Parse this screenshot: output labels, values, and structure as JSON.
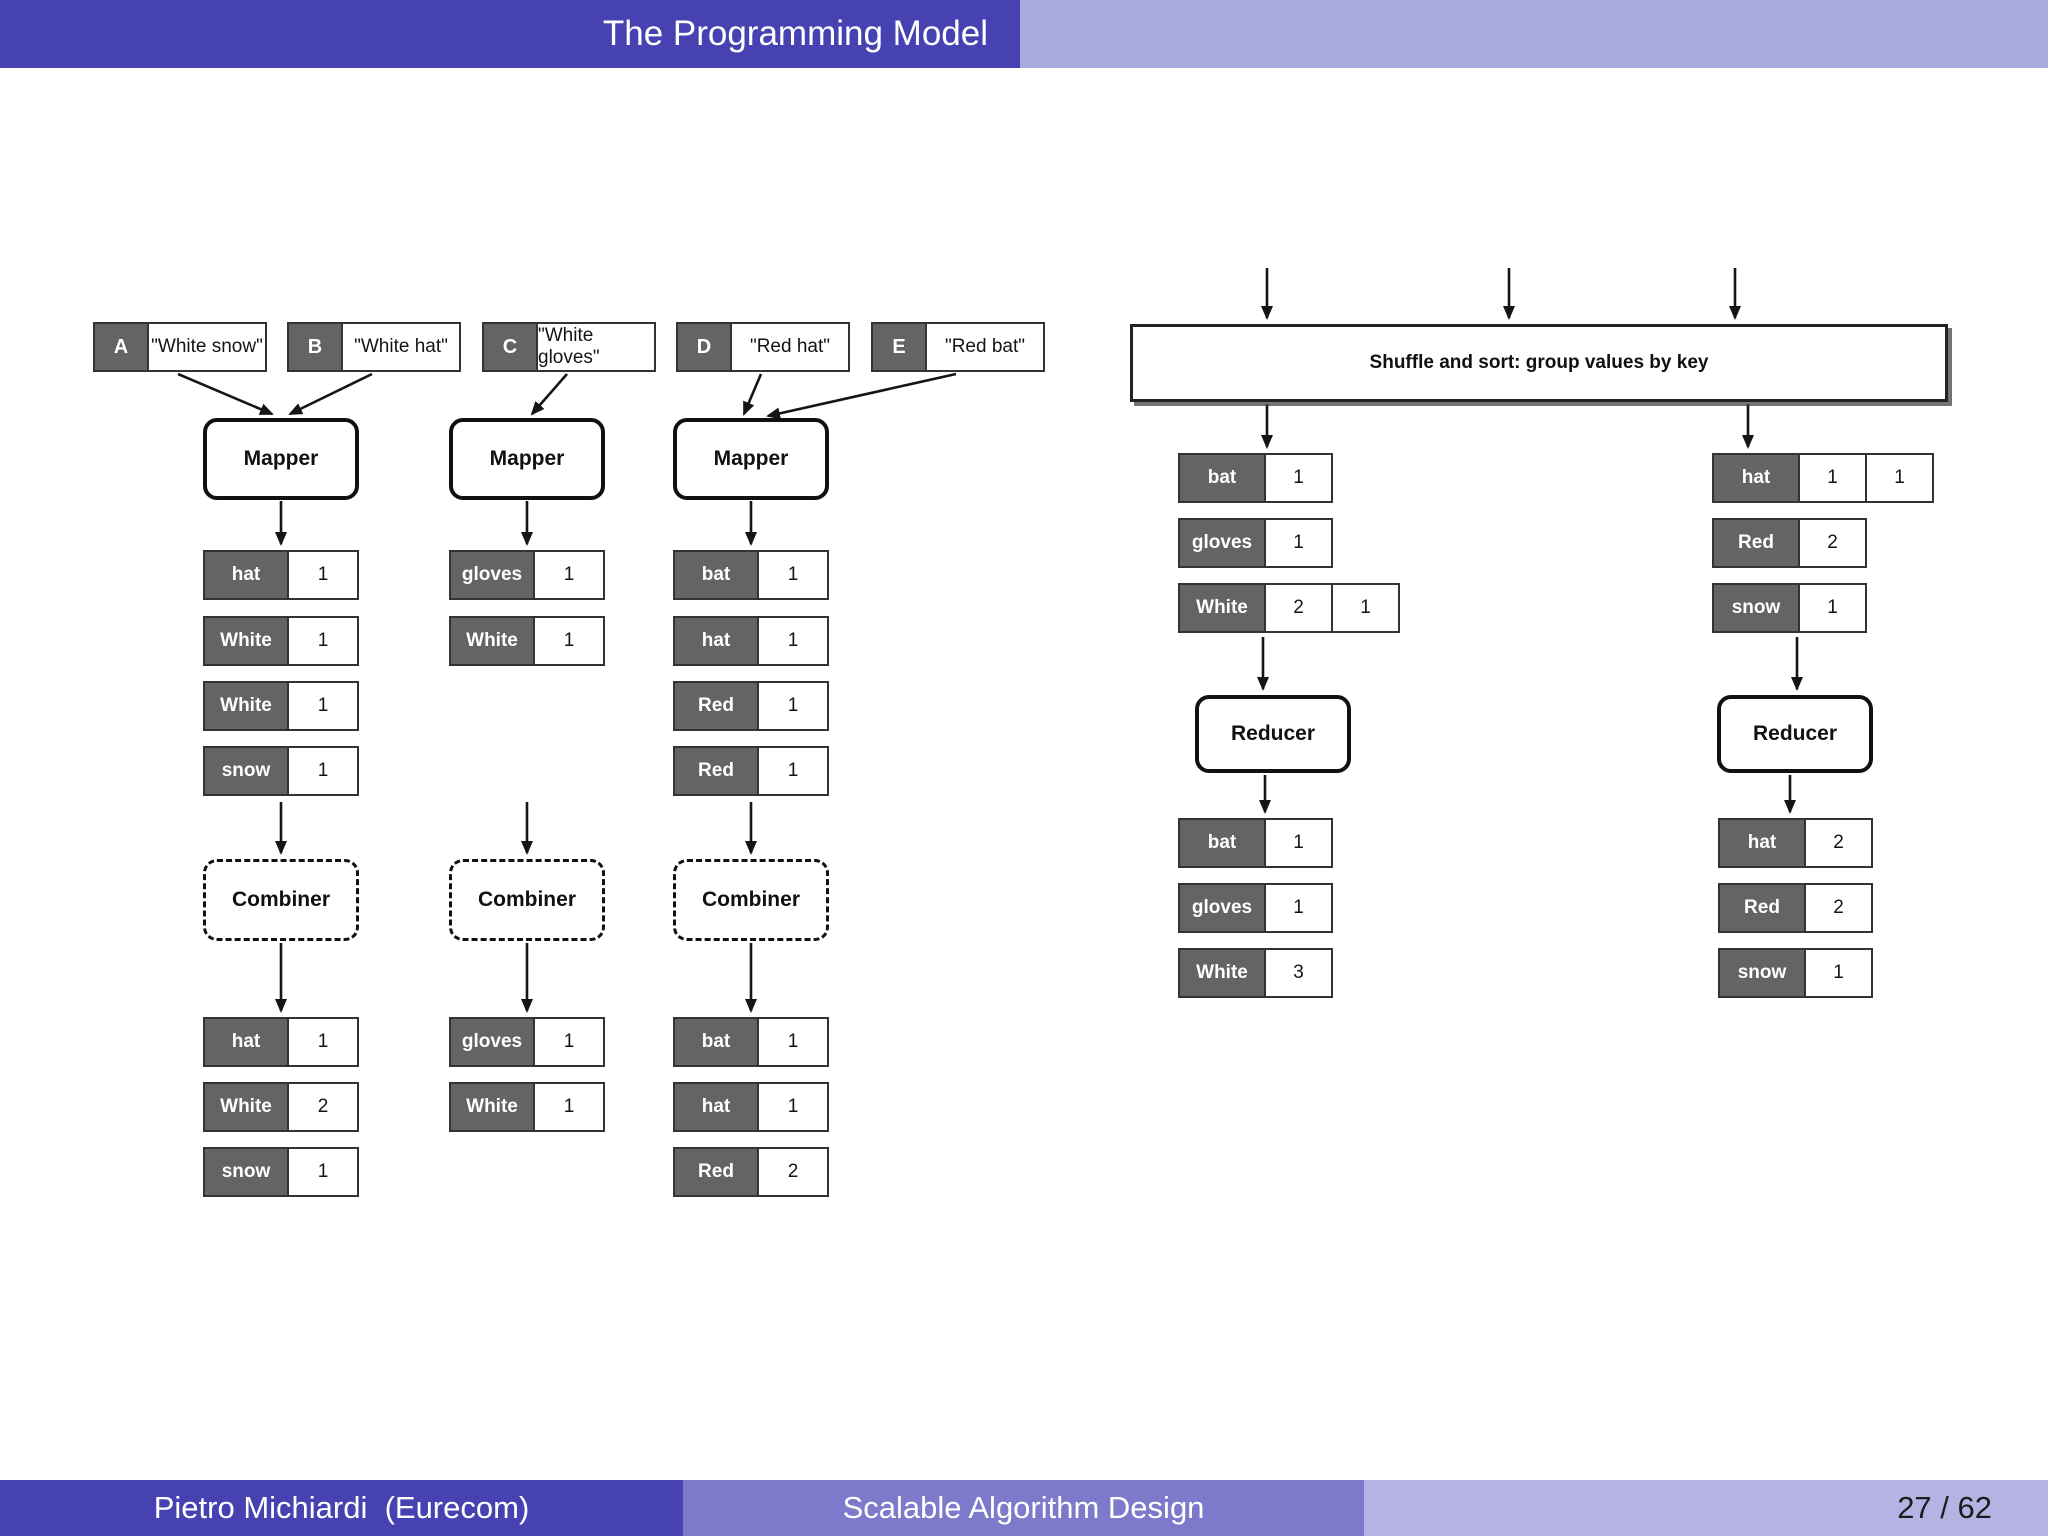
{
  "header": {
    "title": "The Programming Model"
  },
  "footer": {
    "author": "Pietro Michiardi  (Eurecom)",
    "course": "Scalable Algorithm Design",
    "page": "27 / 62"
  },
  "colors": {
    "header_dark": "#4742b1",
    "header_light": "#abaade",
    "footer_mid": "#7d79cb",
    "footer_light": "#b5b3e3",
    "key_cell": "#646464"
  },
  "diagram": {
    "records": [
      {
        "id": "A",
        "text": "\"White snow\""
      },
      {
        "id": "B",
        "text": "\"White hat\""
      },
      {
        "id": "C",
        "text": "\"White gloves\""
      },
      {
        "id": "D",
        "text": "\"Red hat\""
      },
      {
        "id": "E",
        "text": "\"Red bat\""
      }
    ],
    "mapper_label": "Mapper",
    "combiner_label": "Combiner",
    "reducer_label": "Reducer",
    "shuffle_label": "Shuffle and sort: group values by key",
    "mapper_outputs": [
      [
        {
          "key": "hat",
          "values": [
            "1"
          ]
        },
        {
          "key": "White",
          "values": [
            "1"
          ]
        },
        {
          "key": "White",
          "values": [
            "1"
          ]
        },
        {
          "key": "snow",
          "values": [
            "1"
          ]
        }
      ],
      [
        {
          "key": "gloves",
          "values": [
            "1"
          ]
        },
        {
          "key": "White",
          "values": [
            "1"
          ]
        }
      ],
      [
        {
          "key": "bat",
          "values": [
            "1"
          ]
        },
        {
          "key": "hat",
          "values": [
            "1"
          ]
        },
        {
          "key": "Red",
          "values": [
            "1"
          ]
        },
        {
          "key": "Red",
          "values": [
            "1"
          ]
        }
      ]
    ],
    "combiner_outputs": [
      [
        {
          "key": "hat",
          "values": [
            "1"
          ]
        },
        {
          "key": "White",
          "values": [
            "2"
          ]
        },
        {
          "key": "snow",
          "values": [
            "1"
          ]
        }
      ],
      [
        {
          "key": "gloves",
          "values": [
            "1"
          ]
        },
        {
          "key": "White",
          "values": [
            "1"
          ]
        }
      ],
      [
        {
          "key": "bat",
          "values": [
            "1"
          ]
        },
        {
          "key": "hat",
          "values": [
            "1"
          ]
        },
        {
          "key": "Red",
          "values": [
            "2"
          ]
        }
      ]
    ],
    "shuffle_inputs": {
      "left": [
        {
          "key": "bat",
          "values": [
            "1"
          ]
        },
        {
          "key": "gloves",
          "values": [
            "1"
          ]
        },
        {
          "key": "White",
          "values": [
            "2",
            "1"
          ]
        }
      ],
      "right": [
        {
          "key": "hat",
          "values": [
            "1",
            "1"
          ]
        },
        {
          "key": "Red",
          "values": [
            "2"
          ]
        },
        {
          "key": "snow",
          "values": [
            "1"
          ]
        }
      ]
    },
    "reducer_outputs": {
      "left": [
        {
          "key": "bat",
          "values": [
            "1"
          ]
        },
        {
          "key": "gloves",
          "values": [
            "1"
          ]
        },
        {
          "key": "White",
          "values": [
            "3"
          ]
        }
      ],
      "right": [
        {
          "key": "hat",
          "values": [
            "2"
          ]
        },
        {
          "key": "Red",
          "values": [
            "2"
          ]
        },
        {
          "key": "snow",
          "values": [
            "1"
          ]
        }
      ]
    }
  }
}
